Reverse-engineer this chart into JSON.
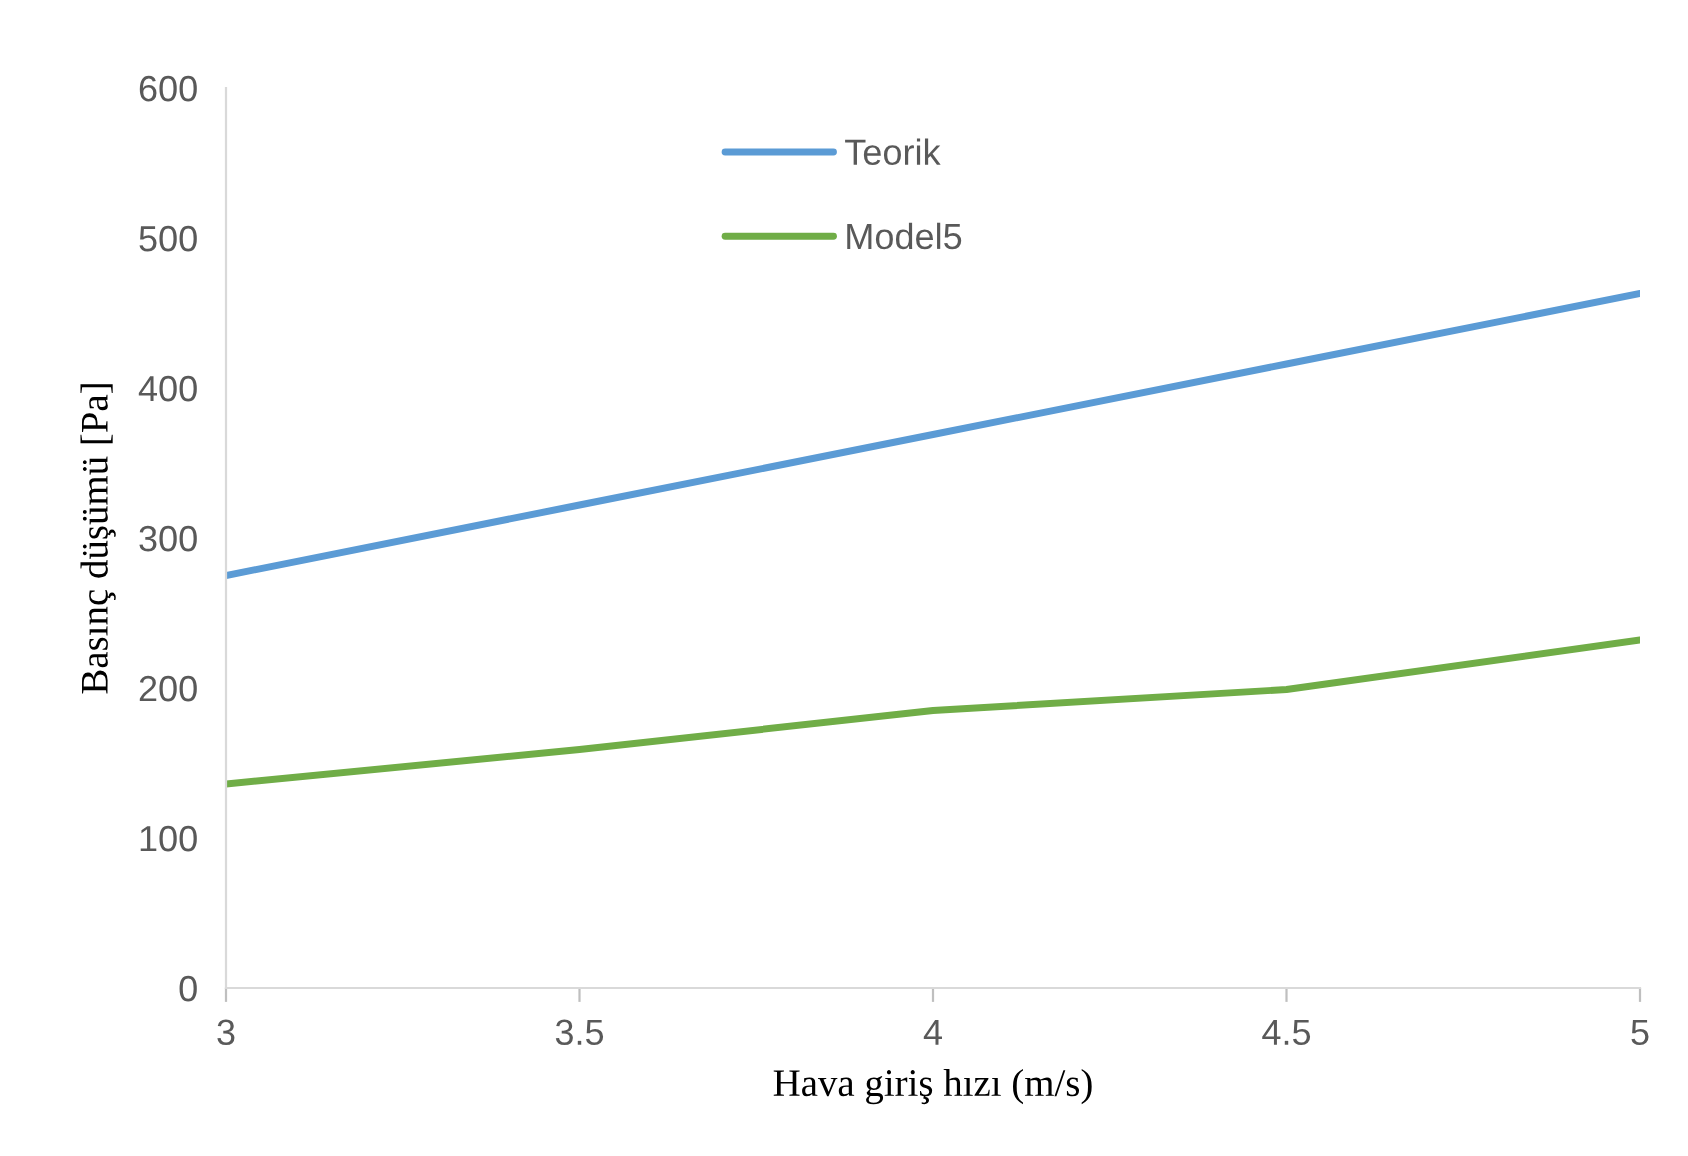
{
  "chart_data": {
    "type": "line",
    "xlabel": "Hava giriş hızı (m/s)",
    "ylabel": "Basınç düşümü [Pa]",
    "x": [
      3,
      3.5,
      4,
      4.5,
      5
    ],
    "series": [
      {
        "name": "Teorik",
        "color": "#5b9bd5",
        "values": [
          275,
          322,
          369,
          416,
          463
        ]
      },
      {
        "name": "Model5",
        "color": "#70ad47",
        "values": [
          136,
          159,
          185,
          199,
          232
        ]
      }
    ],
    "xlim": [
      3,
      5
    ],
    "xticks": [
      3,
      3.5,
      4,
      4.5,
      5
    ],
    "ylim": [
      0,
      600
    ],
    "yticks": [
      0,
      100,
      200,
      300,
      400,
      500,
      600
    ],
    "grid": false,
    "legend": "top",
    "marker": "none",
    "line_style": "solid"
  }
}
